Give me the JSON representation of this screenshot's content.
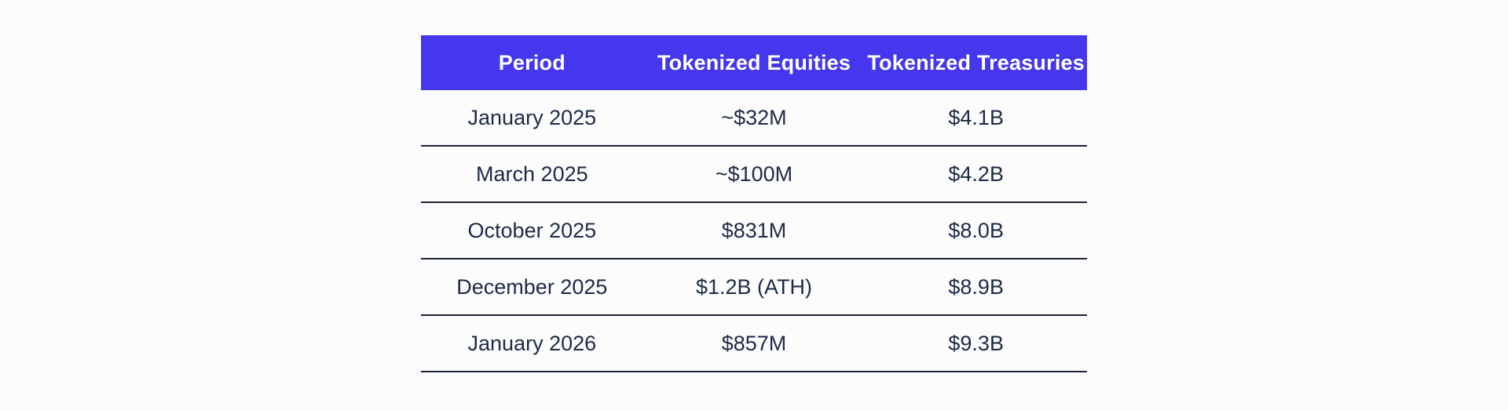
{
  "colors": {
    "header-bg": "#4537ED",
    "header-text": "#FFFFFF",
    "body-text": "#1E2A47",
    "divider": "#1B2435",
    "page-bg": "#FCFCFC"
  },
  "chart_data": {
    "type": "table",
    "columns": [
      "Period",
      "Tokenized Equities",
      "Tokenized Treasuries"
    ],
    "rows": [
      [
        "January 2025",
        "~$32M",
        "$4.1B"
      ],
      [
        "March 2025",
        "~$100M",
        "$4.2B"
      ],
      [
        "October 2025",
        "$831M",
        "$8.0B"
      ],
      [
        "December 2025",
        "$1.2B (ATH)",
        "$8.9B"
      ],
      [
        "January 2026",
        "$857M",
        "$9.3B"
      ]
    ],
    "legend": false,
    "grid": "horizontal-row-dividers"
  }
}
